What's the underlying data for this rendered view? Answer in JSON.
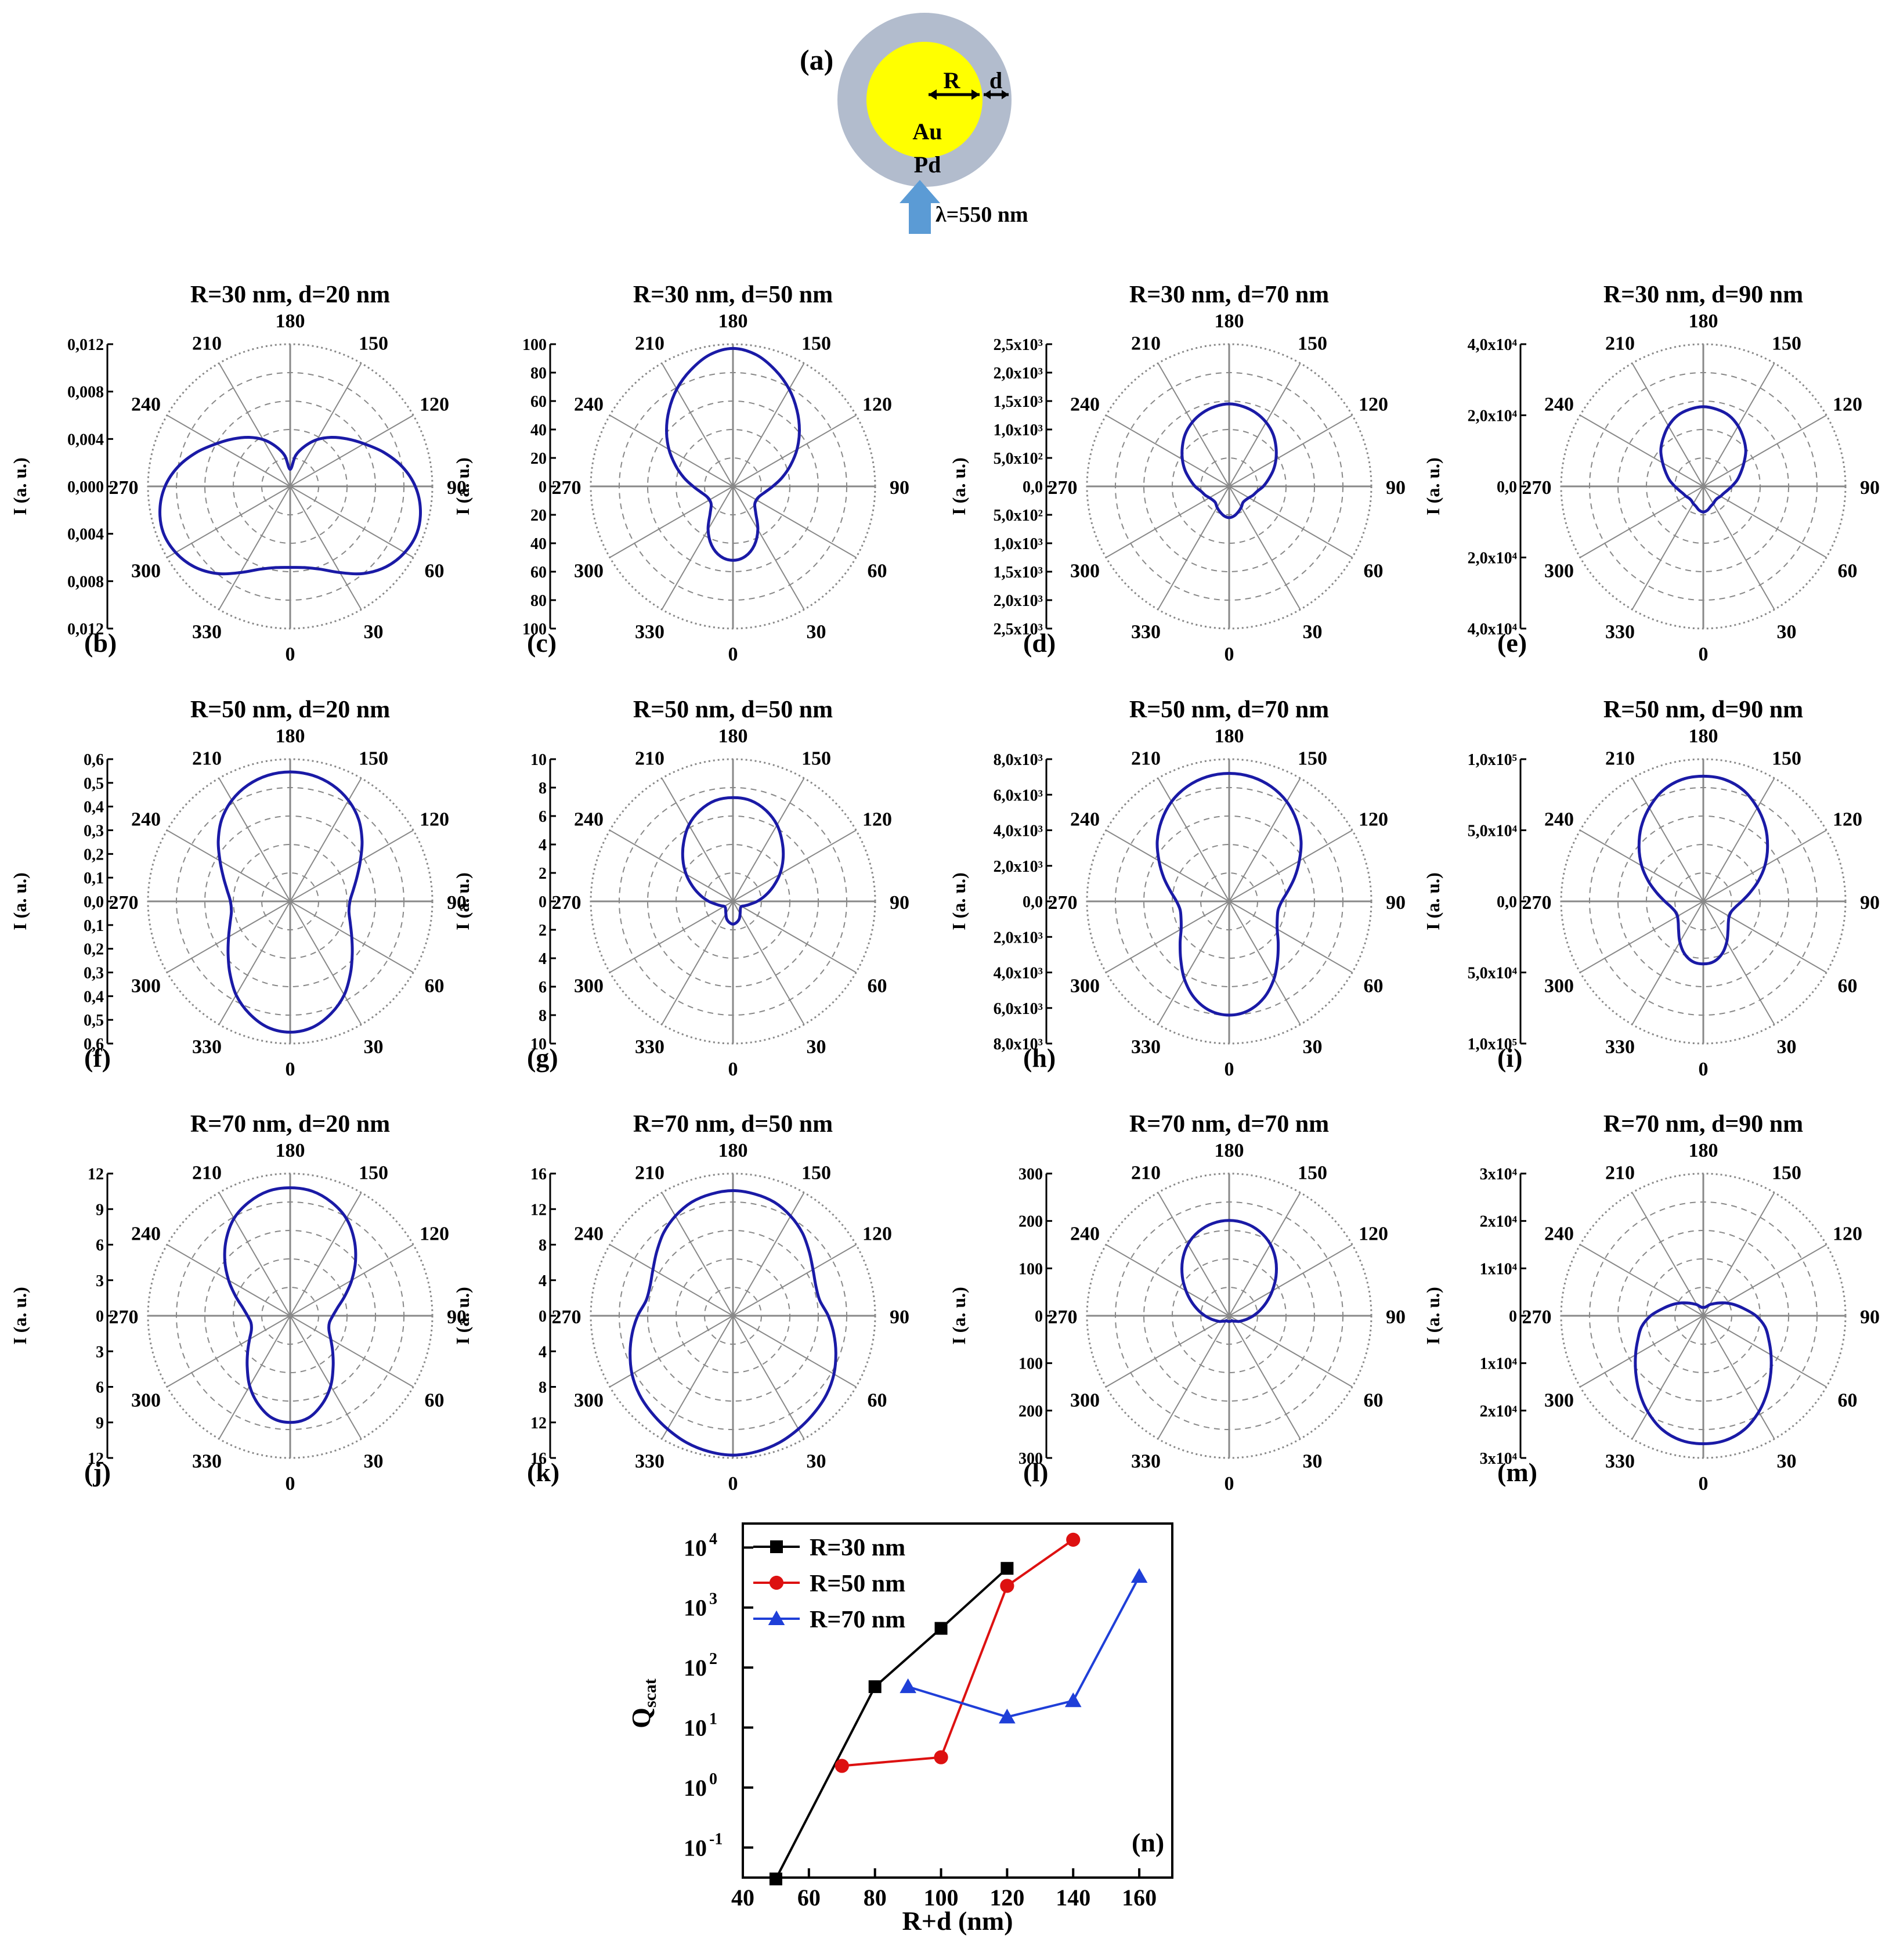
{
  "figure": {
    "schematic": {
      "panel_label": "(a)",
      "core_label": "Au",
      "shell_label": "Pd",
      "radius_label": "R",
      "thickness_label": "d",
      "wavelength_label": "λ=550 nm",
      "core_color": "#ffff00",
      "shell_color": "#b2bccd",
      "arrow_color": "#5b9bd5"
    },
    "polar_common": {
      "angle_labels": [
        "0",
        "30",
        "60",
        "90",
        "120",
        "150",
        "180",
        "210",
        "240",
        "270",
        "300",
        "330"
      ],
      "curve_color": "#1a1aa6",
      "grid_color": "#888888",
      "y_axis_label": "I (a. u.)"
    },
    "polar_panels": [
      {
        "id": "b",
        "panel_label": "(b)",
        "title": "R=30 nm, d=20 nm",
        "tick_labels_up": [
          "0,012",
          "0,008",
          "0,004",
          "0,000"
        ],
        "tick_labels_down": [
          "0,004",
          "0,008",
          "0,012"
        ],
        "profile": [
          0.57,
          0.58,
          0.62,
          0.7,
          0.8,
          0.88,
          0.93,
          0.95,
          0.93,
          0.88,
          0.8,
          0.7,
          0.6,
          0.52,
          0.45,
          0.38,
          0.3,
          0.22,
          0.12
        ]
      },
      {
        "id": "c",
        "panel_label": "(c)",
        "title": "R=30 nm, d=50 nm",
        "tick_labels_up": [
          "100",
          "80",
          "60",
          "40",
          "20",
          "0"
        ],
        "tick_labels_down": [
          "20",
          "40",
          "60",
          "80",
          "100"
        ],
        "profile": [
          0.52,
          0.5,
          0.44,
          0.35,
          0.25,
          0.2,
          0.19,
          0.2,
          0.23,
          0.28,
          0.35,
          0.43,
          0.52,
          0.61,
          0.7,
          0.79,
          0.87,
          0.94,
          0.97
        ]
      },
      {
        "id": "d",
        "panel_label": "(d)",
        "title": "R=30 nm, d=70 nm",
        "tick_labels_up": [
          "2,5x10³",
          "2,0x10³",
          "1,5x10³",
          "1,0x10³",
          "5,0x10²",
          "0,0"
        ],
        "tick_labels_down": [
          "5,0x10²",
          "1,0x10³",
          "1,5x10³",
          "2,0x10³",
          "2,5x10³"
        ],
        "profile": [
          0.22,
          0.21,
          0.19,
          0.17,
          0.15,
          0.15,
          0.16,
          0.18,
          0.2,
          0.24,
          0.28,
          0.33,
          0.38,
          0.43,
          0.48,
          0.52,
          0.55,
          0.57,
          0.58
        ]
      },
      {
        "id": "e",
        "panel_label": "(e)",
        "title": "R=30 nm, d=90 nm",
        "tick_labels_up": [
          "4,0x10⁴",
          "2,0x10⁴",
          "0,0"
        ],
        "tick_labels_down": [
          "2,0x10⁴",
          "4,0x10⁴"
        ],
        "profile": [
          0.18,
          0.17,
          0.15,
          0.14,
          0.13,
          0.13,
          0.14,
          0.15,
          0.17,
          0.2,
          0.24,
          0.28,
          0.33,
          0.39,
          0.44,
          0.49,
          0.53,
          0.55,
          0.56
        ]
      },
      {
        "id": "f",
        "panel_label": "(f)",
        "title": "R=50 nm, d=20 nm",
        "tick_labels_up": [
          "0,6",
          "0,5",
          "0,4",
          "0,3",
          "0,2",
          "0,1",
          "0,0"
        ],
        "tick_labels_down": [
          "0,1",
          "0,2",
          "0,3",
          "0,4",
          "0,5",
          "0,6"
        ],
        "profile": [
          0.92,
          0.9,
          0.84,
          0.76,
          0.66,
          0.57,
          0.5,
          0.45,
          0.42,
          0.42,
          0.45,
          0.5,
          0.57,
          0.66,
          0.75,
          0.82,
          0.87,
          0.9,
          0.91
        ]
      },
      {
        "id": "g",
        "panel_label": "(g)",
        "title": "R=50 nm, d=50 nm",
        "tick_labels_up": [
          "10",
          "8",
          "6",
          "4",
          "2",
          "0"
        ],
        "tick_labels_down": [
          "2",
          "4",
          "6",
          "8",
          "10"
        ],
        "profile": [
          0.16,
          0.15,
          0.13,
          0.1,
          0.08,
          0.07,
          0.07,
          0.09,
          0.12,
          0.17,
          0.23,
          0.3,
          0.38,
          0.46,
          0.54,
          0.62,
          0.68,
          0.72,
          0.73
        ]
      },
      {
        "id": "h",
        "panel_label": "(h)",
        "title": "R=50 nm, d=70 nm",
        "tick_labels_up": [
          "8,0x10³",
          "6,0x10³",
          "4,0x10³",
          "2,0x10³",
          "0,0"
        ],
        "tick_labels_down": [
          "2,0x10³",
          "4,0x10³",
          "6,0x10³",
          "8,0x10³"
        ],
        "profile": [
          0.8,
          0.78,
          0.72,
          0.63,
          0.53,
          0.45,
          0.39,
          0.36,
          0.35,
          0.37,
          0.42,
          0.49,
          0.57,
          0.66,
          0.74,
          0.81,
          0.86,
          0.89,
          0.9
        ]
      },
      {
        "id": "i",
        "panel_label": "(i)",
        "title": "R=50 nm, d=90 nm",
        "tick_labels_up": [
          "1,0x10⁵",
          "5,0x10⁴",
          "0,0"
        ],
        "tick_labels_down": [
          "5,0x10⁴",
          "1,0x10⁵"
        ],
        "profile": [
          0.44,
          0.43,
          0.39,
          0.33,
          0.27,
          0.23,
          0.21,
          0.21,
          0.23,
          0.27,
          0.33,
          0.41,
          0.5,
          0.59,
          0.68,
          0.76,
          0.83,
          0.87,
          0.88
        ]
      },
      {
        "id": "j",
        "panel_label": "(j)",
        "title": "R=70 nm, d=20 nm",
        "tick_labels_up": [
          "12",
          "9",
          "6",
          "3",
          "0"
        ],
        "tick_labels_down": [
          "3",
          "6",
          "9",
          "12"
        ],
        "profile": [
          0.75,
          0.73,
          0.66,
          0.57,
          0.47,
          0.39,
          0.33,
          0.29,
          0.28,
          0.3,
          0.34,
          0.41,
          0.5,
          0.6,
          0.7,
          0.79,
          0.85,
          0.89,
          0.9
        ]
      },
      {
        "id": "k",
        "panel_label": "(k)",
        "title": "R=70 nm, d=50 nm",
        "tick_labels_up": [
          "16",
          "12",
          "8",
          "4",
          "0"
        ],
        "tick_labels_down": [
          "4",
          "8",
          "12",
          "16"
        ],
        "profile": [
          0.98,
          0.97,
          0.95,
          0.92,
          0.89,
          0.86,
          0.82,
          0.77,
          0.72,
          0.67,
          0.62,
          0.62,
          0.65,
          0.7,
          0.76,
          0.81,
          0.85,
          0.87,
          0.88
        ]
      },
      {
        "id": "l",
        "panel_label": "(l)",
        "title": "R=70 nm, d=70 nm",
        "tick_labels_up": [
          "300",
          "200",
          "100",
          "0"
        ],
        "tick_labels_down": [
          "100",
          "200",
          "300"
        ],
        "profile": [
          0.04,
          0.04,
          0.04,
          0.04,
          0.05,
          0.06,
          0.08,
          0.1,
          0.13,
          0.17,
          0.22,
          0.28,
          0.35,
          0.43,
          0.51,
          0.58,
          0.63,
          0.66,
          0.67
        ]
      },
      {
        "id": "m",
        "panel_label": "(m)",
        "title": "R=70 nm, d=90 nm",
        "tick_labels_up": [
          "3x10⁴",
          "2x10⁴",
          "1x10⁴",
          "0"
        ],
        "tick_labels_down": [
          "1x10⁴",
          "2x10⁴",
          "3x10⁴"
        ],
        "profile": [
          0.9,
          0.89,
          0.85,
          0.78,
          0.7,
          0.62,
          0.55,
          0.49,
          0.44,
          0.37,
          0.29,
          0.23,
          0.18,
          0.14,
          0.11,
          0.09,
          0.07,
          0.06,
          0.06
        ]
      }
    ]
  },
  "chart_data": [
    {
      "type": "line",
      "panel_label": "(n)",
      "xlabel": "R+d (nm)",
      "ylabel": "Qscat",
      "ylabel_main": "Q",
      "ylabel_sub": "scat",
      "yscale": "log",
      "xlim": [
        40,
        170
      ],
      "ylim_log10": [
        -1.5,
        4.4
      ],
      "x_ticks": [
        "40",
        "60",
        "80",
        "100",
        "120",
        "140",
        "160"
      ],
      "y_ticks": [
        {
          "base": "10",
          "exp": "-1"
        },
        {
          "base": "10",
          "exp": "0"
        },
        {
          "base": "10",
          "exp": "1"
        },
        {
          "base": "10",
          "exp": "2"
        },
        {
          "base": "10",
          "exp": "3"
        },
        {
          "base": "10",
          "exp": "4"
        }
      ],
      "legend_position": "top-left",
      "series": [
        {
          "name": "R=30 nm",
          "color": "#000000",
          "marker": "square",
          "x": [
            50,
            80,
            100,
            120
          ],
          "y": [
            0.03,
            48,
            450,
            4500
          ]
        },
        {
          "name": "R=50 nm",
          "color": "#dd1111",
          "marker": "circle",
          "x": [
            70,
            100,
            120,
            140
          ],
          "y": [
            2.3,
            3.2,
            2300,
            13500
          ]
        },
        {
          "name": "R=70 nm",
          "color": "#1f3fd8",
          "marker": "triangle",
          "x": [
            90,
            120,
            140,
            160
          ],
          "y": [
            48,
            15,
            28,
            3300
          ]
        }
      ]
    }
  ]
}
